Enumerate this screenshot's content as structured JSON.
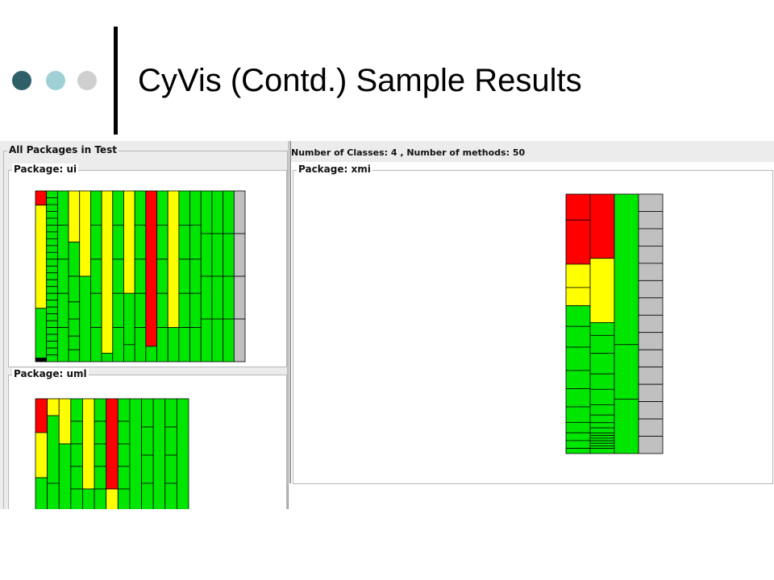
{
  "slide": {
    "title": "CyVis (Contd.) Sample Results"
  },
  "left_panel": {
    "title": "All Packages in Test",
    "packages": [
      {
        "name": "Package: ui"
      },
      {
        "name": "Package: uml"
      }
    ]
  },
  "right_panel": {
    "info": "Number of Classes: 4 , Number of methods: 50",
    "package_name": "Package: xmi"
  },
  "colors": {
    "red": "#ff0000",
    "yellow": "#ffff00",
    "green": "#00e600",
    "gray": "#c0c0c0",
    "black": "#000000",
    "dot_dark": "#2f5f68",
    "dot_light": "#9fd0d6",
    "dot_gray": "#cfcfcf"
  },
  "treemaps": {
    "ui": [
      [
        [
          "R",
          8
        ],
        [
          "Y",
          58
        ],
        [
          "G",
          28
        ],
        [
          "K",
          2
        ]
      ],
      [
        [
          "G",
          4
        ],
        [
          "G",
          4
        ],
        [
          "G",
          4
        ],
        [
          "G",
          4
        ],
        [
          "G",
          4
        ],
        [
          "G",
          4
        ],
        [
          "G",
          4
        ],
        [
          "G",
          4
        ],
        [
          "G",
          4
        ],
        [
          "G",
          4
        ],
        [
          "G",
          4
        ],
        [
          "G",
          4
        ],
        [
          "G",
          4
        ],
        [
          "G",
          4
        ],
        [
          "G",
          4
        ],
        [
          "G",
          4
        ],
        [
          "G",
          4
        ],
        [
          "G",
          4
        ],
        [
          "G",
          4
        ],
        [
          "G",
          4
        ],
        [
          "G",
          4
        ],
        [
          "G",
          4
        ],
        [
          "G",
          4
        ],
        [
          "G",
          4
        ],
        [
          "G",
          4
        ]
      ],
      [
        [
          "G",
          20
        ],
        [
          "G",
          20
        ],
        [
          "G",
          20
        ],
        [
          "G",
          20
        ],
        [
          "G",
          20
        ]
      ],
      [
        [
          "Y",
          30
        ],
        [
          "G",
          20
        ],
        [
          "G",
          15
        ],
        [
          "G",
          10
        ],
        [
          "G",
          10
        ],
        [
          "G",
          8
        ],
        [
          "G",
          7
        ]
      ],
      [
        [
          "Y",
          50
        ],
        [
          "G",
          50
        ]
      ],
      [
        [
          "G",
          20
        ],
        [
          "G",
          20
        ],
        [
          "G",
          20
        ],
        [
          "G",
          20
        ],
        [
          "G",
          20
        ]
      ],
      [
        [
          "Y",
          95
        ],
        [
          "G",
          5
        ]
      ],
      [
        [
          "G",
          20
        ],
        [
          "G",
          20
        ],
        [
          "G",
          20
        ],
        [
          "G",
          20
        ],
        [
          "G",
          20
        ]
      ],
      [
        [
          "Y",
          60
        ],
        [
          "G",
          30
        ],
        [
          "G",
          10
        ]
      ],
      [
        [
          "G",
          20
        ],
        [
          "G",
          20
        ],
        [
          "G",
          20
        ],
        [
          "G",
          20
        ],
        [
          "G",
          20
        ]
      ],
      [
        [
          "R",
          91
        ],
        [
          "G",
          9
        ]
      ],
      [
        [
          "G",
          20
        ],
        [
          "G",
          20
        ],
        [
          "G",
          20
        ],
        [
          "G",
          20
        ],
        [
          "G",
          20
        ]
      ],
      [
        [
          "Y",
          80
        ],
        [
          "G",
          20
        ]
      ],
      [
        [
          "G",
          20
        ],
        [
          "G",
          20
        ],
        [
          "G",
          20
        ],
        [
          "G",
          20
        ],
        [
          "G",
          20
        ]
      ],
      [
        [
          "G",
          20
        ],
        [
          "G",
          20
        ],
        [
          "G",
          20
        ],
        [
          "G",
          20
        ],
        [
          "G",
          20
        ]
      ],
      [
        [
          "G",
          25
        ],
        [
          "G",
          25
        ],
        [
          "G",
          25
        ],
        [
          "G",
          25
        ]
      ],
      [
        [
          "G",
          25
        ],
        [
          "G",
          25
        ],
        [
          "G",
          25
        ],
        [
          "G",
          25
        ]
      ],
      [
        [
          "G",
          25
        ],
        [
          "G",
          25
        ],
        [
          "G",
          25
        ],
        [
          "G",
          25
        ]
      ],
      [
        [
          "g",
          25
        ],
        [
          "g",
          25
        ],
        [
          "g",
          25
        ],
        [
          "g",
          25
        ]
      ]
    ],
    "uml": [
      [
        [
          "R",
          30
        ],
        [
          "Y",
          40
        ],
        [
          "G",
          30
        ]
      ],
      [
        [
          "Y",
          15
        ],
        [
          "G",
          60
        ],
        [
          "G",
          25
        ]
      ],
      [
        [
          "Y",
          40
        ],
        [
          "G",
          60
        ]
      ],
      [
        [
          "G",
          20
        ],
        [
          "G",
          20
        ],
        [
          "G",
          20
        ],
        [
          "G",
          20
        ],
        [
          "G",
          20
        ]
      ],
      [
        [
          "Y",
          80
        ],
        [
          "G",
          20
        ]
      ],
      [
        [
          "G",
          20
        ],
        [
          "G",
          20
        ],
        [
          "G",
          20
        ],
        [
          "G",
          20
        ],
        [
          "G",
          20
        ]
      ],
      [
        [
          "R",
          80
        ],
        [
          "Y",
          20
        ]
      ],
      [
        [
          "G",
          20
        ],
        [
          "G",
          20
        ],
        [
          "G",
          20
        ],
        [
          "G",
          20
        ],
        [
          "G",
          20
        ]
      ],
      [
        [
          "G",
          100
        ]
      ],
      [
        [
          "G",
          25
        ],
        [
          "G",
          25
        ],
        [
          "G",
          25
        ],
        [
          "G",
          25
        ]
      ],
      [
        [
          "G",
          100
        ]
      ],
      [
        [
          "G",
          25
        ],
        [
          "G",
          25
        ],
        [
          "G",
          25
        ],
        [
          "G",
          25
        ]
      ],
      [
        [
          "G",
          100
        ]
      ]
    ],
    "xmi": [
      [
        [
          "R",
          10
        ],
        [
          "R",
          17
        ],
        [
          "Y",
          9
        ],
        [
          "Y",
          7
        ],
        [
          "G",
          8
        ],
        [
          "G",
          8
        ],
        [
          "G",
          9
        ],
        [
          "G",
          7
        ],
        [
          "G",
          7
        ],
        [
          "G",
          6
        ],
        [
          "G",
          4
        ],
        [
          "G",
          3
        ],
        [
          "G",
          3
        ],
        [
          "G",
          2
        ]
      ],
      [
        [
          "R",
          25
        ],
        [
          "Y",
          25
        ],
        [
          "G",
          5
        ],
        [
          "G",
          7
        ],
        [
          "G",
          8
        ],
        [
          "G",
          6
        ],
        [
          "G",
          6
        ],
        [
          "G",
          4
        ],
        [
          "G",
          3
        ],
        [
          "G",
          2
        ],
        [
          "G",
          2
        ],
        [
          "G",
          1
        ],
        [
          "G",
          1
        ],
        [
          "G",
          1
        ],
        [
          "G",
          1
        ],
        [
          "G",
          1
        ],
        [
          "G",
          1
        ],
        [
          "G",
          2
        ]
      ],
      [
        [
          "G",
          58
        ],
        [
          "G",
          21
        ],
        [
          "G",
          21
        ]
      ],
      [
        [
          "g",
          7
        ],
        [
          "g",
          7
        ],
        [
          "g",
          7
        ],
        [
          "g",
          7
        ],
        [
          "g",
          7
        ],
        [
          "g",
          7
        ],
        [
          "g",
          7
        ],
        [
          "g",
          7
        ],
        [
          "g",
          7
        ],
        [
          "g",
          7
        ],
        [
          "g",
          7
        ],
        [
          "g",
          7
        ],
        [
          "g",
          7
        ],
        [
          "g",
          7
        ],
        [
          "g",
          7
        ]
      ]
    ]
  }
}
